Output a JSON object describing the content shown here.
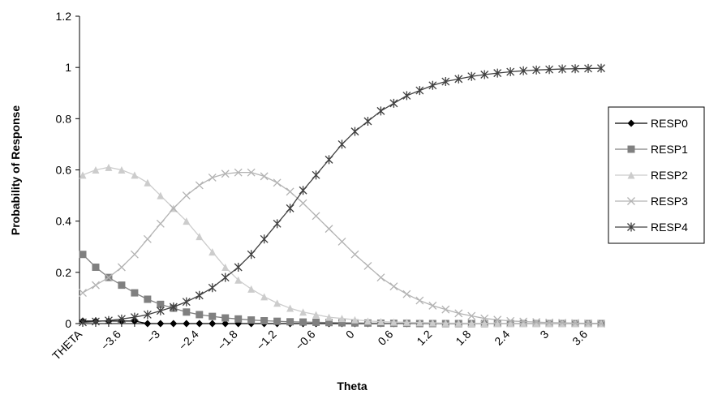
{
  "chart_data": {
    "type": "line",
    "title": "",
    "xlabel": "Theta",
    "ylabel": "Probability of Response",
    "ylim": [
      0,
      1.2
    ],
    "y_ticks": [
      "0",
      "0.2",
      "0.4",
      "0.6",
      "0.8",
      "1",
      "1.2"
    ],
    "x_tick_labels": [
      "THETA",
      "-3.6",
      "-3",
      "-2.4",
      "-1.8",
      "-1.2",
      "-0.6",
      "0",
      "0.6",
      "1.2",
      "1.8",
      "2.4",
      "3",
      "3.6"
    ],
    "grid": false,
    "legend_position": "right",
    "x": [
      -4.0,
      -3.8,
      -3.6,
      -3.4,
      -3.2,
      -3.0,
      -2.8,
      -2.6,
      -2.4,
      -2.2,
      -2.0,
      -1.8,
      -1.6,
      -1.4,
      -1.2,
      -1.0,
      -0.8,
      -0.6,
      -0.4,
      -0.2,
      0.0,
      0.2,
      0.4,
      0.6,
      0.8,
      1.0,
      1.2,
      1.4,
      1.6,
      1.8,
      2.0,
      2.2,
      2.4,
      2.6,
      2.8,
      3.0,
      3.2,
      3.4,
      3.6,
      3.8,
      4.0
    ],
    "series": [
      {
        "name": "RESP0",
        "marker": "diamond",
        "color": "#000000",
        "values": [
          0.01,
          0.01,
          0.01,
          0.01,
          0.01,
          0.0,
          0.0,
          0.0,
          0.0,
          0.0,
          0.0,
          0.0,
          0.0,
          0.0,
          0.0,
          0.0,
          0.0,
          0.0,
          0.0,
          0.0,
          0.0,
          0.0,
          0.0,
          0.0,
          0.0,
          0.0,
          0.0,
          0.0,
          0.0,
          0.0,
          0.0,
          0.0,
          0.0,
          0.0,
          0.0,
          0.0,
          0.0,
          0.0,
          0.0,
          0.0,
          0.0
        ]
      },
      {
        "name": "RESP1",
        "marker": "square",
        "color": "#808080",
        "values": [
          0.27,
          0.22,
          0.18,
          0.15,
          0.12,
          0.095,
          0.075,
          0.06,
          0.045,
          0.035,
          0.028,
          0.022,
          0.018,
          0.014,
          0.011,
          0.009,
          0.007,
          0.006,
          0.005,
          0.004,
          0.003,
          0.0025,
          0.002,
          0.0015,
          0.001,
          0.001,
          0.0,
          0.0,
          0.0,
          0.0,
          0.0,
          0.0,
          0.0,
          0.0,
          0.0,
          0.0,
          0.0,
          0.0,
          0.0,
          0.0,
          0.0
        ]
      },
      {
        "name": "RESP2",
        "marker": "triangle",
        "color": "#cccccc",
        "values": [
          0.58,
          0.6,
          0.61,
          0.6,
          0.58,
          0.55,
          0.5,
          0.45,
          0.4,
          0.34,
          0.28,
          0.22,
          0.17,
          0.135,
          0.105,
          0.08,
          0.06,
          0.045,
          0.035,
          0.025,
          0.02,
          0.015,
          0.01,
          0.008,
          0.006,
          0.005,
          0.004,
          0.003,
          0.002,
          0.002,
          0.001,
          0.001,
          0.0,
          0.0,
          0.0,
          0.0,
          0.0,
          0.0,
          0.0,
          0.0,
          0.0
        ]
      },
      {
        "name": "RESP3",
        "marker": "x",
        "color": "#b3b3b3",
        "values": [
          0.12,
          0.15,
          0.18,
          0.22,
          0.27,
          0.33,
          0.39,
          0.45,
          0.5,
          0.54,
          0.57,
          0.585,
          0.59,
          0.59,
          0.575,
          0.55,
          0.515,
          0.47,
          0.42,
          0.37,
          0.32,
          0.27,
          0.225,
          0.18,
          0.145,
          0.115,
          0.09,
          0.07,
          0.055,
          0.04,
          0.03,
          0.02,
          0.015,
          0.01,
          0.008,
          0.006,
          0.004,
          0.003,
          0.002,
          0.001,
          0.0
        ]
      },
      {
        "name": "RESP4",
        "marker": "asterisk",
        "color": "#404040",
        "values": [
          0.005,
          0.008,
          0.012,
          0.018,
          0.025,
          0.035,
          0.05,
          0.065,
          0.085,
          0.11,
          0.14,
          0.18,
          0.22,
          0.27,
          0.33,
          0.39,
          0.45,
          0.52,
          0.58,
          0.64,
          0.7,
          0.75,
          0.79,
          0.83,
          0.86,
          0.89,
          0.91,
          0.93,
          0.945,
          0.955,
          0.965,
          0.972,
          0.978,
          0.983,
          0.987,
          0.99,
          0.992,
          0.994,
          0.995,
          0.996,
          0.997
        ]
      }
    ]
  }
}
